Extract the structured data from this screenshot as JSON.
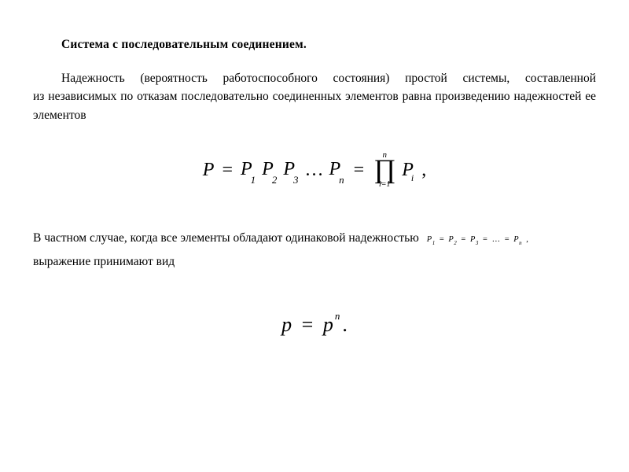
{
  "colors": {
    "background": "#ffffff",
    "text": "#000000"
  },
  "typography": {
    "body_family": "Times New Roman",
    "body_size_pt": 12,
    "heading_weight": "bold",
    "formula1_size_pt": 18,
    "formula2_size_pt": 20,
    "inline_eq_size_pt": 8
  },
  "heading": "Система с последовательным соединением.",
  "p1": "Надежность (вероятность работоспособного состояния) простой системы, составленной из независимых по отказам последовательно соединенных элементов равна произведению надежностей ее элементов",
  "formula1": {
    "lhs": "P",
    "factors": [
      "P",
      "P",
      "P",
      "…",
      "P"
    ],
    "factor_sub": [
      "1",
      "2",
      "3",
      "",
      "n"
    ],
    "prod_upper": "n",
    "prod_lower": "i=1",
    "prod_body": "P",
    "prod_body_sub": "i",
    "trail": ","
  },
  "p2a": "В частном случае, когда все элементы обладают одинаковой надежностью",
  "inline_eq": {
    "terms": [
      "P",
      "P",
      "P",
      "…",
      "P"
    ],
    "subs": [
      "1",
      "2",
      "3",
      "",
      "n"
    ],
    "trail": ","
  },
  "p2b": "выражение  принимают вид",
  "formula2": {
    "lhs": "p",
    "rhs_base": "p",
    "rhs_exp": "n",
    "trail": "."
  }
}
